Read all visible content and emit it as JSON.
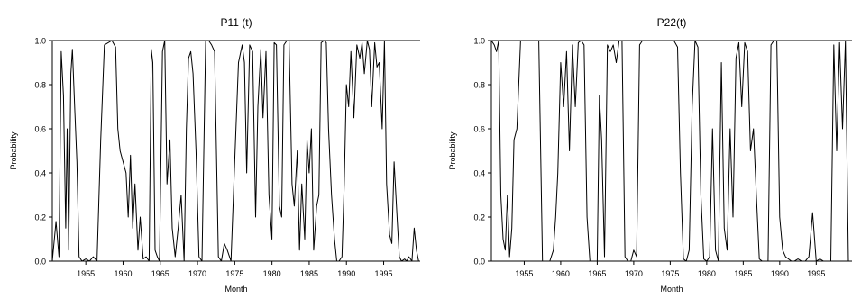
{
  "figure": {
    "background": "#ffffff",
    "line_color": "#000000"
  },
  "chart_data": [
    {
      "type": "line",
      "title": "P11 (t)",
      "xlabel": "Month",
      "ylabel": "Probability",
      "xlim": [
        1950.5,
        1999.9
      ],
      "ylim": [
        0,
        1
      ],
      "xticks": [
        "1955",
        "1960",
        "1965",
        "1970",
        "1975",
        "1980",
        "1985",
        "1990",
        "1995"
      ],
      "yticks": [
        "0.0",
        "0.2",
        "0.4",
        "0.6",
        "0.8",
        "1.0"
      ],
      "grid": false,
      "series": [
        {
          "x": [
            1950.5,
            1951.0,
            1951.4,
            1951.7,
            1952.0,
            1952.3,
            1952.5,
            1952.7,
            1953.0,
            1953.2,
            1953.5,
            1953.8,
            1954.1,
            1954.5,
            1955.0,
            1955.5,
            1956.0,
            1956.5,
            1957.0,
            1957.5,
            1958.5,
            1959.0,
            1959.3,
            1959.6,
            1960.0,
            1960.4,
            1960.7,
            1961.0,
            1961.3,
            1961.6,
            1962.0,
            1962.3,
            1962.7,
            1963.1,
            1963.5,
            1963.8,
            1964.0,
            1964.3,
            1964.6,
            1964.9,
            1965.3,
            1965.6,
            1965.9,
            1966.3,
            1966.6,
            1967.0,
            1967.4,
            1967.8,
            1968.2,
            1968.5,
            1968.8,
            1969.1,
            1969.4,
            1969.8,
            1970.2,
            1970.6,
            1971.1,
            1971.5,
            1971.9,
            1972.3,
            1972.8,
            1973.2,
            1973.6,
            1974.0,
            1974.5,
            1975.0,
            1975.5,
            1976.0,
            1976.3,
            1976.6,
            1977.0,
            1977.4,
            1977.8,
            1978.1,
            1978.5,
            1978.8,
            1979.2,
            1979.6,
            1980.0,
            1980.3,
            1980.6,
            1981.0,
            1981.3,
            1981.6,
            1982.0,
            1982.3,
            1982.7,
            1983.0,
            1983.4,
            1983.7,
            1984.0,
            1984.4,
            1984.7,
            1985.0,
            1985.3,
            1985.6,
            1986.0,
            1986.3,
            1986.6,
            1987.0,
            1987.3,
            1987.6,
            1988.0,
            1988.4,
            1988.7,
            1989.0,
            1989.4,
            1989.7,
            1990.0,
            1990.3,
            1990.6,
            1991.0,
            1991.4,
            1991.8,
            1992.1,
            1992.4,
            1992.8,
            1993.1,
            1993.4,
            1993.8,
            1994.1,
            1994.4,
            1994.8,
            1995.1,
            1995.4,
            1995.8,
            1996.1,
            1996.4,
            1996.8,
            1997.1,
            1997.4,
            1997.8,
            1998.1,
            1998.4,
            1998.8,
            1999.1,
            1999.4,
            1999.7
          ],
          "y": [
            0.0,
            0.18,
            0.02,
            0.95,
            0.75,
            0.15,
            0.6,
            0.05,
            0.85,
            0.96,
            0.7,
            0.45,
            0.02,
            0.0,
            0.01,
            0.0,
            0.02,
            0.0,
            0.55,
            0.98,
            1.0,
            0.97,
            0.6,
            0.5,
            0.45,
            0.4,
            0.2,
            0.48,
            0.15,
            0.35,
            0.05,
            0.2,
            0.01,
            0.02,
            0.0,
            0.96,
            0.9,
            0.05,
            0.02,
            0.0,
            0.95,
            1.0,
            0.35,
            0.55,
            0.15,
            0.02,
            0.15,
            0.3,
            0.0,
            0.6,
            0.92,
            0.95,
            0.85,
            0.5,
            0.02,
            0.0,
            1.0,
            1.0,
            0.98,
            0.95,
            0.02,
            0.0,
            0.08,
            0.05,
            0.0,
            0.45,
            0.9,
            0.98,
            0.9,
            0.4,
            0.98,
            0.95,
            0.2,
            0.7,
            0.96,
            0.65,
            0.95,
            0.3,
            0.1,
            0.99,
            0.98,
            0.25,
            0.2,
            0.98,
            1.0,
            1.0,
            0.35,
            0.25,
            0.5,
            0.05,
            0.35,
            0.1,
            0.55,
            0.4,
            0.6,
            0.05,
            0.25,
            0.3,
            0.99,
            1.0,
            0.99,
            0.6,
            0.3,
            0.1,
            0.0,
            0.0,
            0.02,
            0.35,
            0.8,
            0.7,
            0.95,
            0.65,
            0.98,
            0.92,
            0.99,
            0.85,
            1.0,
            0.96,
            0.7,
            0.99,
            0.88,
            0.9,
            0.6,
            1.0,
            0.35,
            0.12,
            0.08,
            0.45,
            0.2,
            0.02,
            0.0,
            0.01,
            0.0,
            0.02,
            0.0,
            0.15,
            0.05,
            0.0
          ]
        }
      ]
    },
    {
      "type": "line",
      "title": "P22(t)",
      "xlabel": "Month",
      "ylabel": "Probability",
      "xlim": [
        1950.5,
        1999.9
      ],
      "ylim": [
        0,
        1
      ],
      "xticks": [
        "1955",
        "1960",
        "1965",
        "1970",
        "1975",
        "1980",
        "1985",
        "1990",
        "1995"
      ],
      "yticks": [
        "0.0",
        "0.2",
        "0.4",
        "0.6",
        "0.8",
        "1.0"
      ],
      "grid": false,
      "series": [
        {
          "x": [
            1950.5,
            1950.9,
            1951.2,
            1951.5,
            1951.8,
            1952.1,
            1952.4,
            1952.7,
            1953.0,
            1953.3,
            1953.6,
            1954.0,
            1954.5,
            1955.0,
            1955.5,
            1956.0,
            1956.5,
            1957.0,
            1957.5,
            1958.0,
            1958.5,
            1959.0,
            1959.3,
            1959.6,
            1960.0,
            1960.4,
            1960.8,
            1961.2,
            1961.6,
            1962.0,
            1962.4,
            1962.8,
            1963.2,
            1963.6,
            1964.0,
            1964.5,
            1965.0,
            1965.3,
            1965.6,
            1966.0,
            1966.4,
            1966.8,
            1967.2,
            1967.6,
            1968.0,
            1968.4,
            1968.8,
            1969.2,
            1969.6,
            1970.0,
            1970.4,
            1970.8,
            1971.2,
            1971.6,
            1972.0,
            1972.5,
            1973.0,
            1973.5,
            1974.0,
            1974.5,
            1975.0,
            1975.5,
            1976.0,
            1976.4,
            1976.8,
            1977.2,
            1977.6,
            1978.0,
            1978.4,
            1978.8,
            1979.2,
            1979.6,
            1980.0,
            1980.4,
            1980.8,
            1981.2,
            1981.6,
            1982.0,
            1982.4,
            1982.8,
            1983.2,
            1983.6,
            1984.0,
            1984.4,
            1984.8,
            1985.2,
            1985.6,
            1986.0,
            1986.4,
            1986.8,
            1987.2,
            1987.6,
            1988.0,
            1988.4,
            1988.8,
            1989.2,
            1989.6,
            1990.0,
            1990.4,
            1990.8,
            1991.2,
            1991.6,
            1992.0,
            1992.5,
            1993.0,
            1993.5,
            1994.0,
            1994.5,
            1995.0,
            1995.5,
            1996.0,
            1996.5,
            1997.0,
            1997.4,
            1997.8,
            1998.2,
            1998.6,
            1999.0,
            1999.4
          ],
          "y": [
            1.0,
            0.98,
            0.95,
            1.0,
            0.3,
            0.1,
            0.05,
            0.3,
            0.02,
            0.15,
            0.55,
            0.6,
            1.0,
            1.0,
            1.0,
            1.0,
            1.0,
            1.0,
            0.0,
            0.0,
            0.0,
            0.05,
            0.2,
            0.4,
            0.9,
            0.7,
            0.95,
            0.5,
            0.98,
            0.7,
            0.99,
            1.0,
            0.98,
            0.2,
            0.0,
            0.0,
            0.0,
            0.75,
            0.55,
            0.02,
            0.98,
            0.95,
            0.98,
            0.9,
            1.0,
            1.0,
            0.02,
            0.0,
            0.0,
            0.05,
            0.02,
            0.98,
            1.0,
            1.0,
            1.0,
            1.0,
            1.0,
            1.0,
            1.0,
            1.0,
            1.0,
            1.0,
            0.97,
            0.4,
            0.01,
            0.0,
            0.05,
            0.7,
            1.0,
            0.97,
            0.3,
            0.01,
            0.0,
            0.02,
            0.6,
            0.05,
            0.0,
            0.9,
            0.15,
            0.05,
            0.6,
            0.2,
            0.92,
            0.99,
            0.7,
            0.99,
            0.95,
            0.5,
            0.6,
            0.3,
            0.01,
            0.0,
            0.0,
            0.0,
            0.98,
            1.0,
            1.0,
            0.2,
            0.05,
            0.02,
            0.01,
            0.0,
            0.0,
            0.01,
            0.0,
            0.0,
            0.02,
            0.22,
            0.0,
            0.01,
            0.0,
            0.0,
            0.0,
            0.98,
            0.5,
            0.99,
            0.6,
            1.0,
            0.0
          ]
        }
      ]
    }
  ]
}
